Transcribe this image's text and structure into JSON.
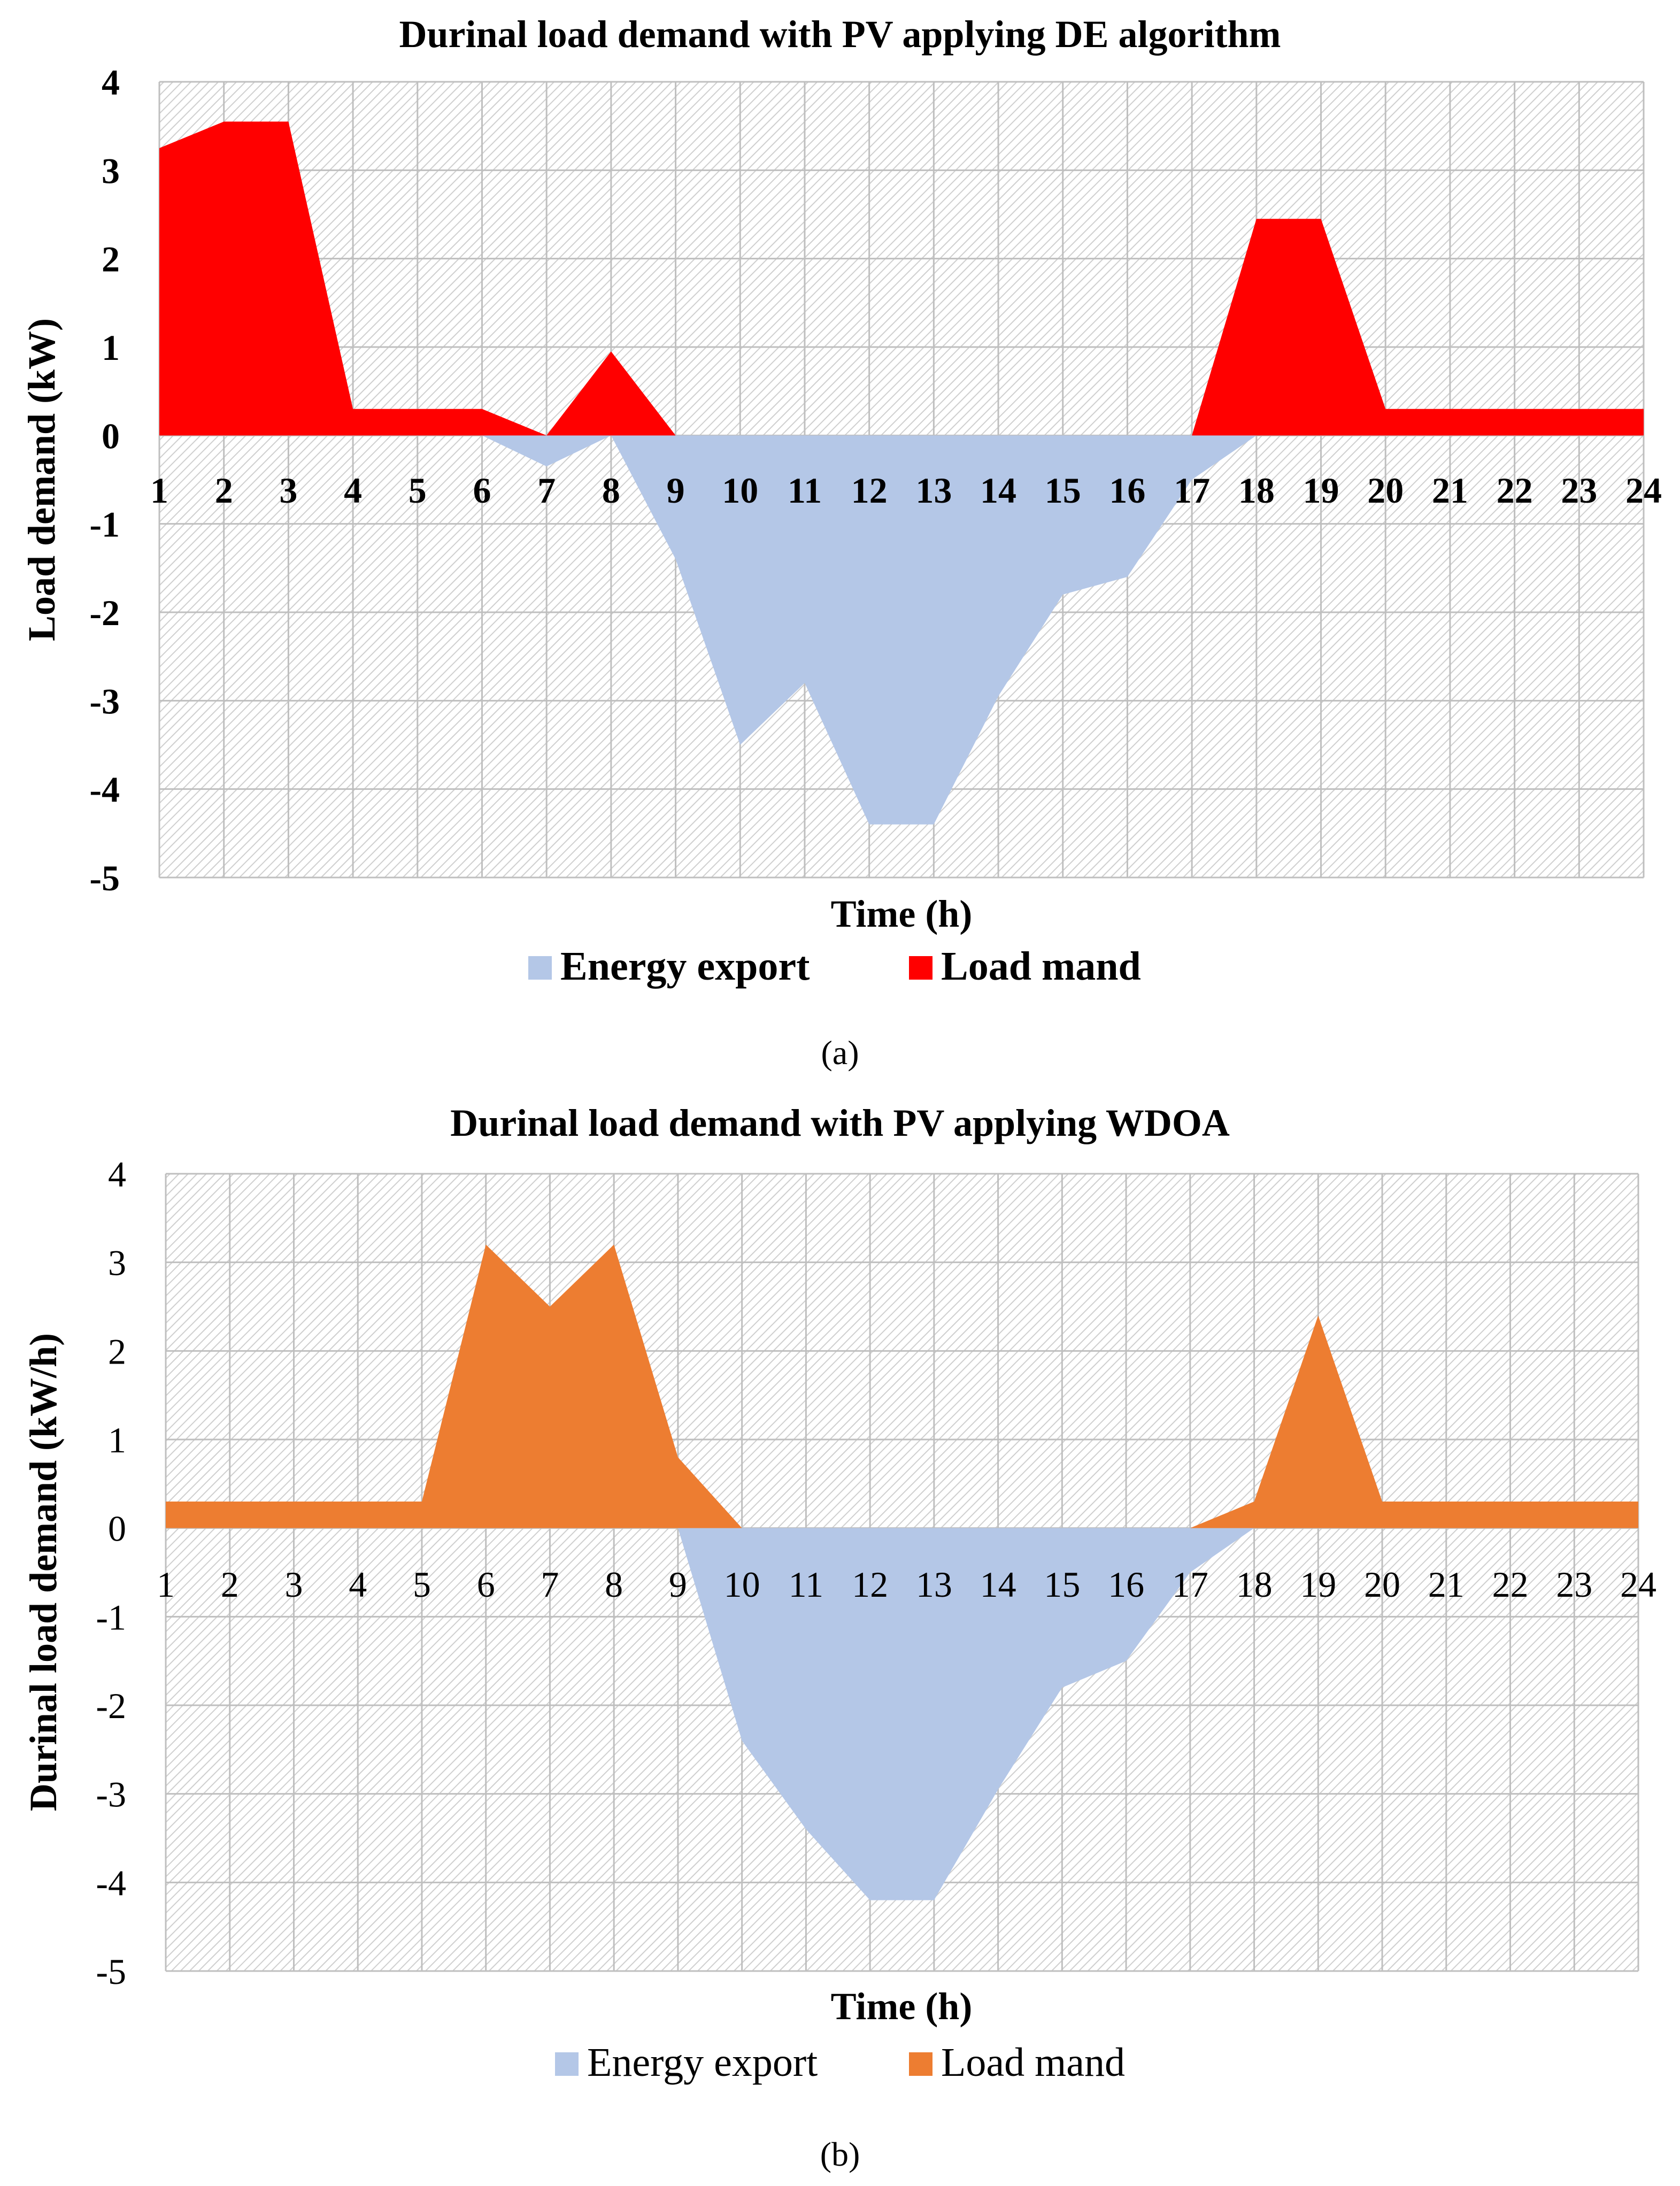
{
  "chart_data": [
    {
      "type": "area",
      "title": "Durinal load demand with PV applying DE algorithm",
      "xlabel": "Time (h)",
      "ylabel": "Load demand (kW)",
      "caption": "(a)",
      "ylim": [
        -5,
        4
      ],
      "yticks": [
        "4",
        "3",
        "2",
        "1",
        "0",
        "-1",
        "-2",
        "-3",
        "-4",
        "-5"
      ],
      "categories": [
        "1",
        "2",
        "3",
        "4",
        "5",
        "6",
        "7",
        "8",
        "9",
        "10",
        "11",
        "12",
        "13",
        "14",
        "15",
        "16",
        "17",
        "18",
        "19",
        "20",
        "21",
        "22",
        "23",
        "24"
      ],
      "series": [
        {
          "name": "Energy export",
          "color": "#b4c7e7",
          "values": [
            0,
            0,
            0,
            0,
            0,
            0,
            -0.35,
            0,
            -1.4,
            -3.5,
            -2.8,
            -4.4,
            -4.4,
            -2.95,
            -1.8,
            -1.6,
            -0.5,
            0,
            0,
            0,
            0,
            0,
            0,
            0
          ]
        },
        {
          "name": "Load mand",
          "color": "#ff0000",
          "values": [
            3.25,
            3.55,
            3.55,
            0.3,
            0.3,
            0.3,
            0,
            0.95,
            0,
            0,
            0,
            0,
            0,
            0,
            0,
            0,
            0,
            2.45,
            2.45,
            0.3,
            0.3,
            0.3,
            0.3,
            0.3
          ]
        }
      ]
    },
    {
      "type": "area",
      "title": "Durinal load demand with PV applying WDOA",
      "xlabel": "Time (h)",
      "ylabel": "Durinal load demand (kW/h)",
      "caption": "(b)",
      "ylim": [
        -5,
        4
      ],
      "yticks": [
        "4",
        "3",
        "2",
        "1",
        "0",
        "-1",
        "-2",
        "-3",
        "-4",
        "-5"
      ],
      "categories": [
        "1",
        "2",
        "3",
        "4",
        "5",
        "6",
        "7",
        "8",
        "9",
        "10",
        "11",
        "12",
        "13",
        "14",
        "15",
        "16",
        "17",
        "18",
        "19",
        "20",
        "21",
        "22",
        "23",
        "24"
      ],
      "series": [
        {
          "name": "Energy export",
          "color": "#b4c7e7",
          "values": [
            0,
            0,
            0,
            0,
            0,
            0,
            0,
            0,
            0,
            -2.4,
            -3.4,
            -4.2,
            -4.2,
            -2.95,
            -1.8,
            -1.5,
            -0.5,
            0,
            0,
            0,
            0,
            0,
            0,
            0
          ]
        },
        {
          "name": "Load mand",
          "color": "#ed7d31",
          "values": [
            0.3,
            0.3,
            0.3,
            0.3,
            0.3,
            3.2,
            2.5,
            3.2,
            0.8,
            0,
            0,
            0,
            0,
            0,
            0,
            0,
            0,
            0.3,
            2.4,
            0.3,
            0.3,
            0.3,
            0.3,
            0.3
          ]
        }
      ]
    }
  ]
}
